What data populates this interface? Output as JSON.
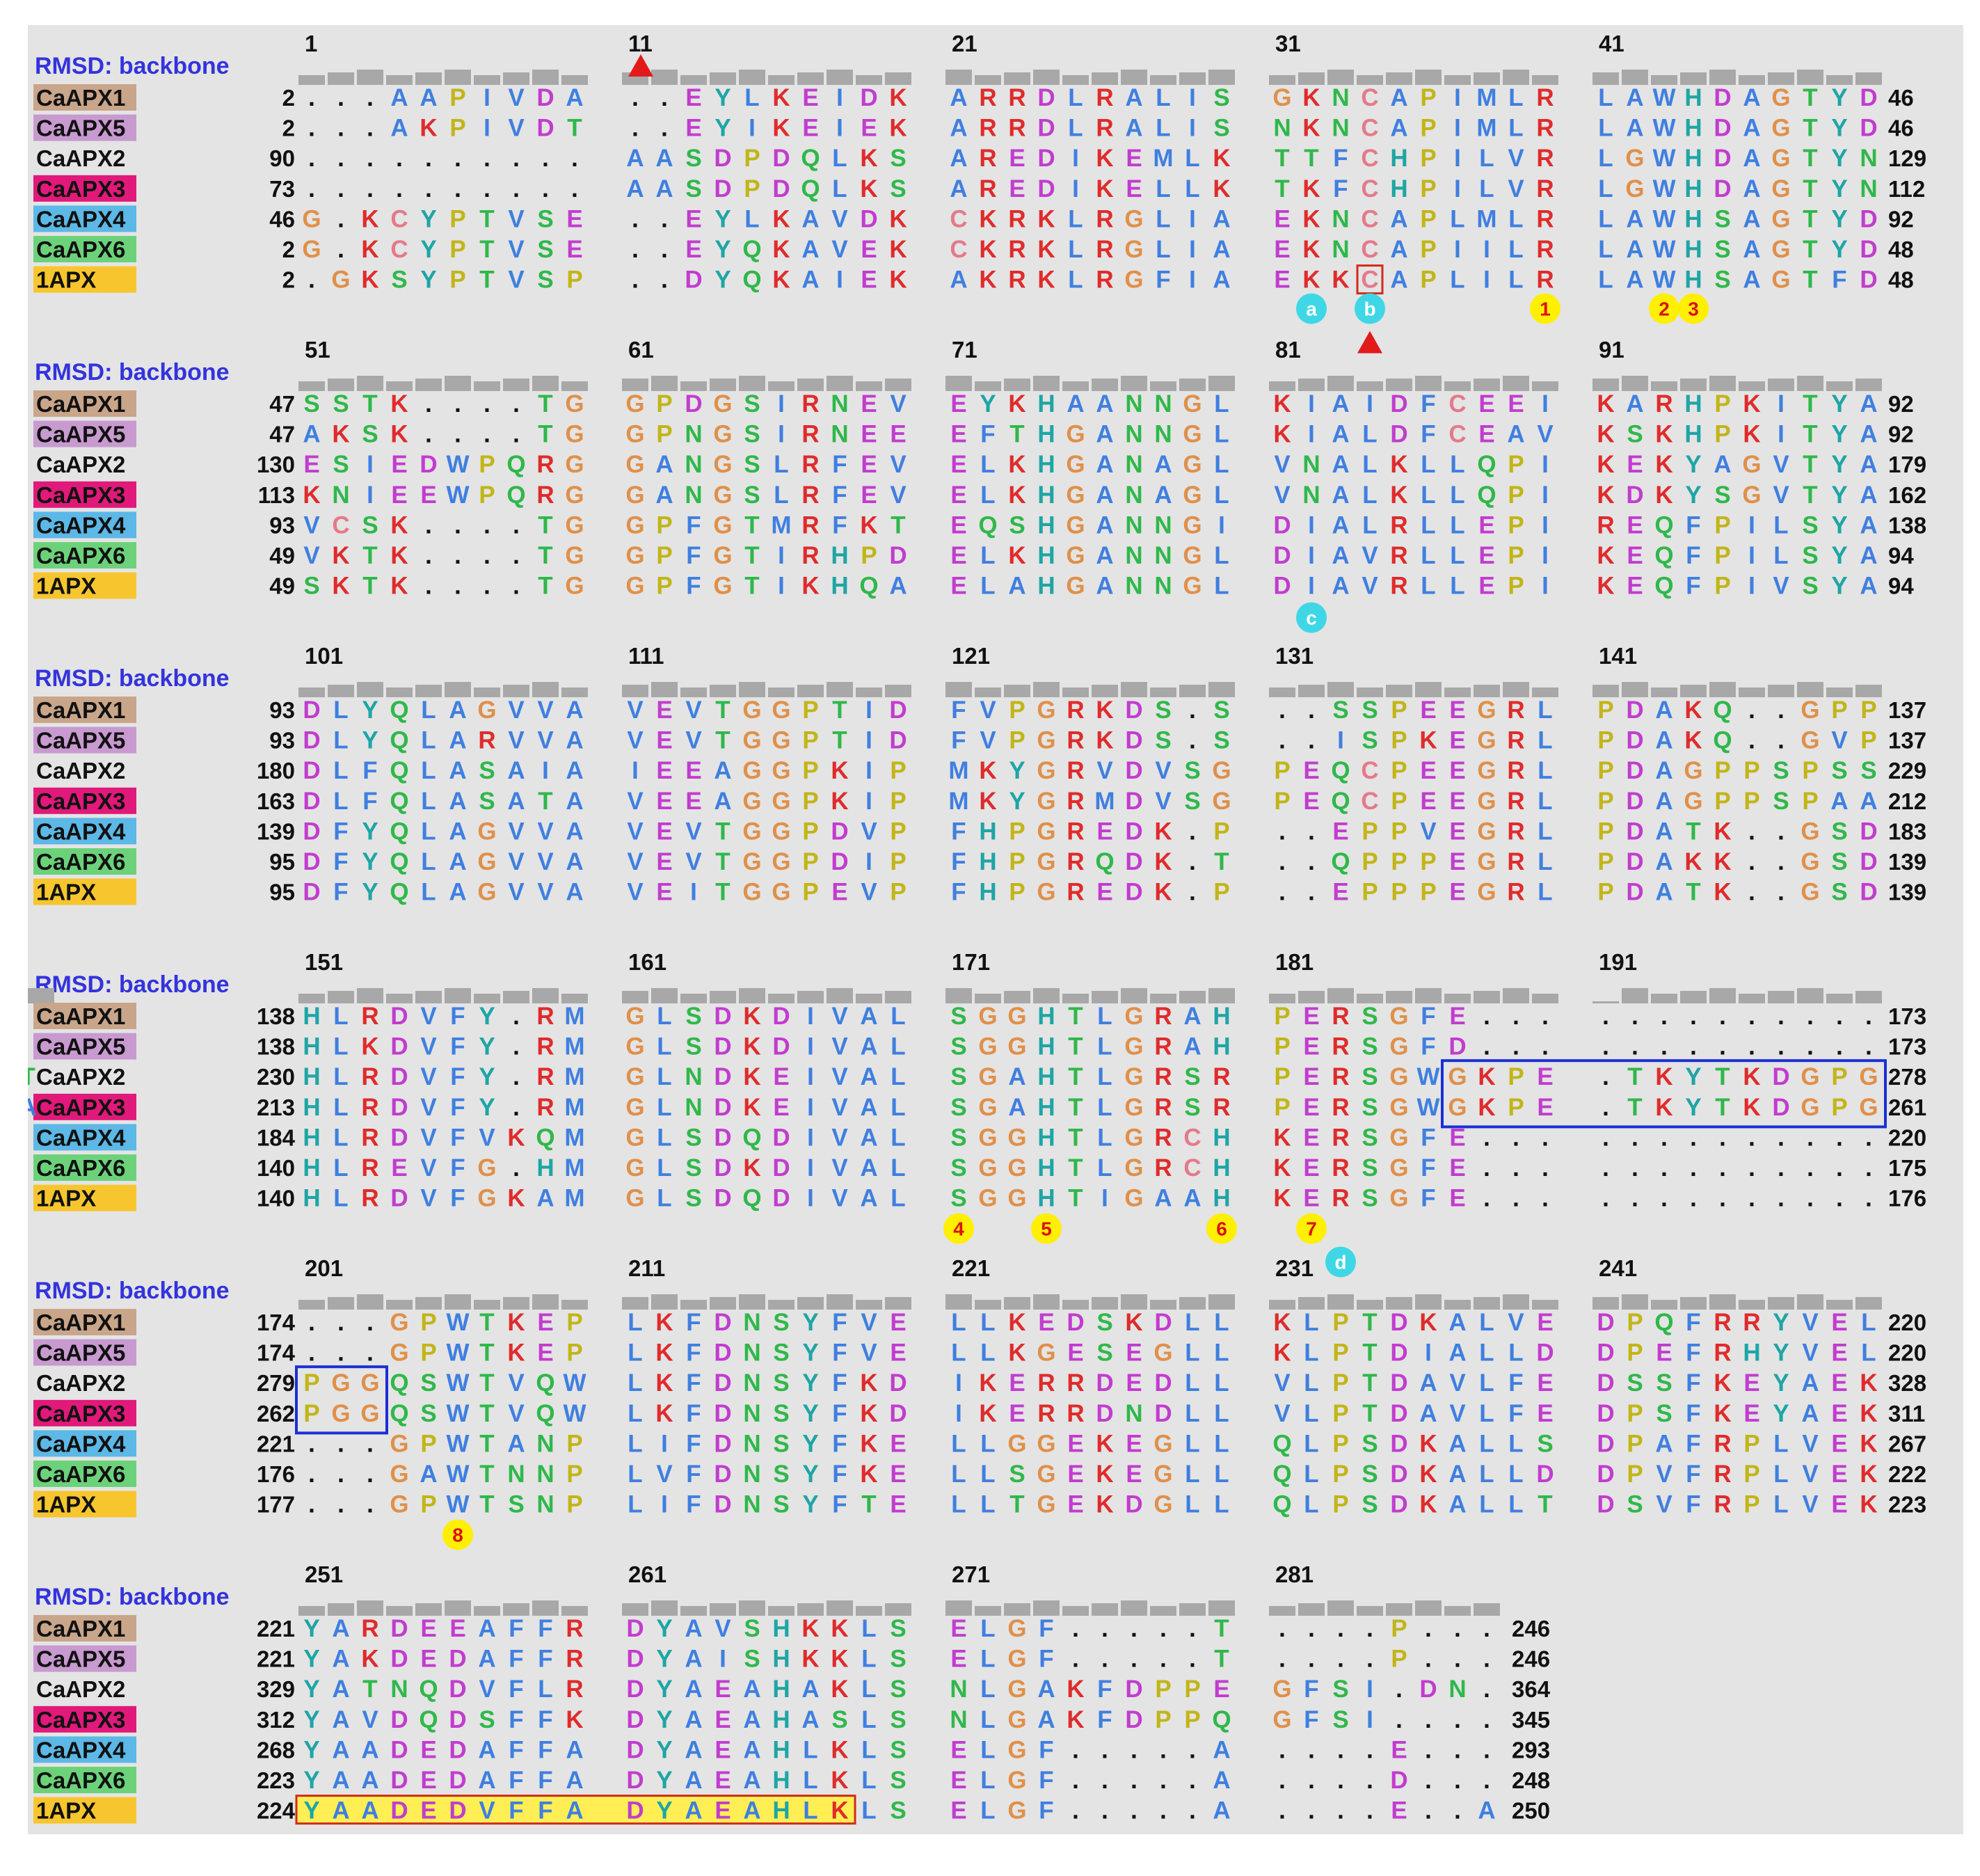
{
  "figure": {
    "rmsd_label": "RMSD: backbone",
    "colors": {
      "panel_background": "#e4e4e4",
      "rmsd_label": "#3333dd",
      "highlight_box": "#1a2fd6",
      "outline_box": "#d22a1a",
      "highlight_fill": "#ffef55",
      "arrowhead": "#e31a1a",
      "marker_yellow": "#ffef00",
      "marker_cyan": "#3fd7e6",
      "rmsd_bar": "#a8a8a8"
    },
    "sequences": [
      {
        "name": "CaAPX1",
        "label_color": "#c9a58a"
      },
      {
        "name": "CaAPX5",
        "label_color": "#c89ad0"
      },
      {
        "name": "CaAPX2",
        "label_color": "#e4e4e4"
      },
      {
        "name": "CaAPX3",
        "label_color": "#e0197a"
      },
      {
        "name": "CaAPX4",
        "label_color": "#5cb8e6"
      },
      {
        "name": "CaAPX6",
        "label_color": "#6cd27a"
      },
      {
        "name": "1APX",
        "label_color": "#f7c62e"
      }
    ],
    "residue_colors": {
      "hydrophobic": "#3f7fe0",
      "positive": "#e02b2b",
      "negative": "#c23ccf",
      "polar": "#2fb84a",
      "cysteine": "#e47a8a",
      "glycine": "#e0904a",
      "proline": "#c2b517",
      "aromatic": "#1fa5a5",
      "other": "#111111"
    },
    "blocks": [
      {
        "columns": [
          "1",
          "11",
          "21",
          "31",
          "41"
        ],
        "rows": [
          {
            "start": "2",
            "end": "46",
            "seq": "...AAPIVDA..EYLKEIDKARRDLRALISGKNCAPIMLRLAWHDAGTYD"
          },
          {
            "start": "2",
            "end": "46",
            "seq": "...AKPIVDT..EYIKEIEKARRDLRALISNKNCAPIMLRLAWHDAGTYD"
          },
          {
            "start": "90",
            "end": "129",
            "seq": "..........AASDPDQLKSAREDIKEMLKTTFCHPILVRLGWHDAGTYN"
          },
          {
            "start": "73",
            "end": "112",
            "seq": "..........AASDPDQLKSAREDIKELLKTKFCHPILVRLGWHDAGTYN"
          },
          {
            "start": "46",
            "end": "92",
            "seq": "G.KCYPTVSE..EYLKAVDKCKRKLRGLIAEKNCAPLMLRLAWHSAGTYD"
          },
          {
            "start": "2",
            "end": "48",
            "seq": "G.KCYPTVSE..EYQKAVEKCKRKLRGLIAEKNCAPIILRLAWHSAGTYD"
          },
          {
            "start": "2",
            "end": "48",
            "seq": ".GKSYPTVSP..DYQKAIEKAKRKLRGFIAEKKCAPLILRLAWHSAGTFD"
          }
        ]
      },
      {
        "columns": [
          "51",
          "61",
          "71",
          "81",
          "91"
        ],
        "rows": [
          {
            "start": "47",
            "end": "92",
            "seq": "SSTK....TGGPDGSIRNEVEYKHAANNGLKIAIDFCEEIKARHPKITYA"
          },
          {
            "start": "47",
            "end": "92",
            "seq": "AKSK....TGGPNGSIRNEEEFTHGANNGLKIALDFCEAVKSKHPKITYA"
          },
          {
            "start": "130",
            "end": "179",
            "seq": "ESIEDWPQRGGANGSLRFEVELKHGANAGLVNALKLLQPIKEKYAGVTYA"
          },
          {
            "start": "113",
            "end": "162",
            "seq": "KNIEEWPQRGGANGSLRFEVELKHGANAGLVNALKLLQPIKDKYSGVTYA"
          },
          {
            "start": "93",
            "end": "138",
            "seq": "VCSK....TGGPFGTMRFKTEQSHGANNGIDIALRLLEPIREQFPILSYA"
          },
          {
            "start": "49",
            "end": "94",
            "seq": "VKTK....TGGPFGTIRHPDELKHGANNGLDIAVRLLEPIKEQFPILSYA"
          },
          {
            "start": "49",
            "end": "94",
            "seq": "SKTK....TGGPFGTIKHQAELAHGANNGLDIAVRLLEPIKEQFPIVSYA"
          }
        ]
      },
      {
        "columns": [
          "101",
          "111",
          "121",
          "131",
          "141"
        ],
        "rows": [
          {
            "start": "93",
            "end": "137",
            "seq": "DLYQLAGVVAVEVTGGPTIDFVPGRKDS.S..SSPEEGRLPDAKQ..GPP"
          },
          {
            "start": "93",
            "end": "137",
            "seq": "DLYQLARVVAVEVTGGPTIDFVPGRKDS.S..ISPKEGRLPDAKQ..GVP"
          },
          {
            "start": "180",
            "end": "229",
            "seq": "DLFQLASAIAIEEAGGPKIPMKYGRVDVSGPEQCPEEGRLPDAGPPSPSS"
          },
          {
            "start": "163",
            "end": "212",
            "seq": "DLFQLASATAVEEAGGPKIPMKYGRMDVSGPEQCPEEGRLPDAGPPSPAA"
          },
          {
            "start": "139",
            "end": "183",
            "seq": "DFYQLAGVVAVEVTGGPDVPFHPGREDK.P..EPPVEGRLPDATK..GSD"
          },
          {
            "start": "95",
            "end": "139",
            "seq": "DFYQLAGVVAVEVTGGPDIPFHPGRQDK.T..QPPPEGRLPDAKK..GSD"
          },
          {
            "start": "95",
            "end": "139",
            "seq": "DFYQLAGVVAVEITGGPEVPFHPGREDK.P..EPPPEGRLPDATK..GSD"
          }
        ]
      },
      {
        "columns": [
          "151",
          "161",
          "171",
          "181",
          "191"
        ],
        "rows": [
          {
            "start": "138",
            "end": "173",
            "seq": "HLRDVFY.RMGLSDKDIVALSGGHTLGRAHPERSGFE............."
          },
          {
            "start": "138",
            "end": "173",
            "seq": "HLKDVFY.RMGLSDKDIVALSGGHTLGRAHPERSGFD............."
          },
          {
            "start": "230",
            "end": "278",
            "seq": "HLRDVFY.RMGLNDKEIVALSGAHTLGRSRPERSGWGKPE.TKYTKDGPGT"
          },
          {
            "start": "213",
            "end": "261",
            "seq": "HLRDVFY.RMGLNDKEIVALSGAHTLGRSRPERSGWGKPE.TKYTKDGPGA"
          },
          {
            "start": "184",
            "end": "220",
            "seq": "HLRDVFVKQMGLSDQDIVALSGGHTLGRCHKERSGFE............."
          },
          {
            "start": "140",
            "end": "175",
            "seq": "HLREVFG.HMGLSDKDIVALSGGHTLGRCHKERSGFE............."
          },
          {
            "start": "140",
            "end": "176",
            "seq": "HLRDVFGKAMGLSDQDIVALSGGHTIGAAHKERSGFE............."
          }
        ]
      },
      {
        "columns": [
          "201",
          "211",
          "221",
          "231",
          "241"
        ],
        "rows": [
          {
            "start": "174",
            "end": "220",
            "seq": "...GPWTKEPLKFDNSYFVELLKEDSKDLLKLPTDKALVEDPQFRRYVEL"
          },
          {
            "start": "174",
            "end": "220",
            "seq": "...GPWTKEPLKFDNSYFVELLKGESEGLLKLPTDIALLDDPEFRHYVEL"
          },
          {
            "start": "279",
            "end": "328",
            "seq": "PGGQSWTVQWLKFDNSYFKDIKERRDEDLLVLPTDAVLFEDSSFKEYAEK"
          },
          {
            "start": "262",
            "end": "311",
            "seq": "PGGQSWTVQWLKFDNSYFKDIKERRDNDLLVLPTDAVLFEDPSFKEYAEK"
          },
          {
            "start": "221",
            "end": "267",
            "seq": "...GPWTANPLIFDNSYFKELLGGEKEGLLQLPSDKALLSDPAFRPLVEK"
          },
          {
            "start": "176",
            "end": "222",
            "seq": "...GAWTNNPLVFDNSYFKELLSGEKEGLLQLPSDKALLDDPVFRPLVEK"
          },
          {
            "start": "177",
            "end": "223",
            "seq": "...GPWTSNPLIFDNSYFTELLTGEKDGLLQLPSDKALLTDSVFRPLVEK"
          }
        ]
      },
      {
        "columns": [
          "251",
          "261",
          "271",
          "281",
          ""
        ],
        "rows": [
          {
            "start": "221",
            "end": "246",
            "seq": "YARDEEAFFRDYAVSHKKLSELGF.....T....P..."
          },
          {
            "start": "221",
            "end": "246",
            "seq": "YAKDEDAFFRDYAISHKKLSELGF.....T....P..."
          },
          {
            "start": "329",
            "end": "364",
            "seq": "YATNQDVFLRDYAEAHAKLSNLGAKFDPPEGFSI.DN."
          },
          {
            "start": "312",
            "end": "345",
            "seq": "YAVDQDSFFKDYAEAHASLSNLGAKFDPPQGFSI...."
          },
          {
            "start": "268",
            "end": "293",
            "seq": "YAADEDAFFADYAEAHLKLSELGF.....A....E..."
          },
          {
            "start": "223",
            "end": "248",
            "seq": "YAADEDAFFADYAEAHLKLSELGF.....A....D..."
          },
          {
            "start": "224",
            "end": "250",
            "seq": "YAADEDVFFADYAEAHLKLSELGF.....A....E..A"
          }
        ]
      }
    ],
    "markers": [
      {
        "label": "a",
        "style": "cyan"
      },
      {
        "label": "b",
        "style": "cyan"
      },
      {
        "label": "1",
        "style": "yellow"
      },
      {
        "label": "2",
        "style": "yellow"
      },
      {
        "label": "3",
        "style": "yellow"
      },
      {
        "label": "c",
        "style": "cyan"
      },
      {
        "label": "4",
        "style": "yellow"
      },
      {
        "label": "5",
        "style": "yellow"
      },
      {
        "label": "6",
        "style": "yellow"
      },
      {
        "label": "7",
        "style": "yellow"
      },
      {
        "label": "d",
        "style": "cyan"
      },
      {
        "label": "8",
        "style": "yellow"
      }
    ]
  }
}
